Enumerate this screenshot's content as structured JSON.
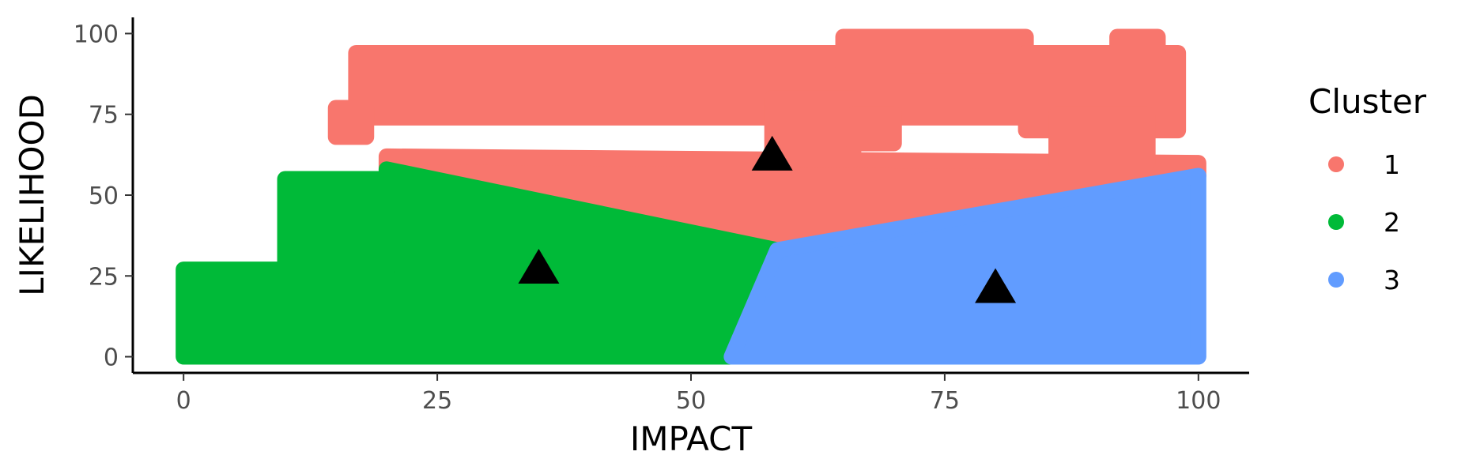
{
  "chart_data": {
    "type": "scatter",
    "xlabel": "IMPACT",
    "ylabel": "LIKELIHOOD",
    "xlim": [
      -5,
      105
    ],
    "ylim": [
      -5,
      105
    ],
    "xticks": [
      0,
      25,
      50,
      75,
      100
    ],
    "yticks": [
      0,
      25,
      50,
      75,
      100
    ],
    "grid": false,
    "legend": {
      "title": "Cluster",
      "placement": "right"
    },
    "series": [
      {
        "name": "1",
        "color": "#F8766D",
        "regions": [
          {
            "x": [
              17,
              83
            ],
            "y": [
              74,
              94
            ]
          },
          {
            "x": [
              15,
              18
            ],
            "y": [
              68,
              77
            ]
          },
          {
            "x": [
              65,
              83
            ],
            "y": [
              90,
              99
            ]
          },
          {
            "x": [
              83,
              98
            ],
            "y": [
              70,
              94
            ]
          },
          {
            "x": [
              92,
              96
            ],
            "y": [
              95,
              99
            ]
          },
          {
            "x": [
              58,
              66
            ],
            "y": [
              61,
              80
            ]
          },
          {
            "x": [
              86,
              95
            ],
            "y": [
              60,
              75
            ]
          },
          {
            "x": [
              66,
              70
            ],
            "y": [
              66,
              75
            ]
          }
        ],
        "boundary_polygon": [
          [
            20,
            62
          ],
          [
            100,
            60
          ],
          [
            100,
            56
          ],
          [
            58.5,
            33
          ],
          [
            20,
            58
          ]
        ]
      },
      {
        "name": "2",
        "color": "#00BA38",
        "regions": [
          {
            "x": [
              0,
              20
            ],
            "y": [
              0,
              27
            ]
          },
          {
            "x": [
              10,
              20
            ],
            "y": [
              27,
              55
            ]
          }
        ],
        "boundary_polygon": [
          [
            20,
            58
          ],
          [
            58.5,
            33
          ],
          [
            54,
            0
          ],
          [
            20,
            0
          ]
        ]
      },
      {
        "name": "3",
        "color": "#619CFF",
        "boundary_polygon": [
          [
            58.5,
            33
          ],
          [
            100,
            56
          ],
          [
            100,
            0
          ],
          [
            68,
            0
          ],
          [
            54,
            0
          ]
        ]
      }
    ],
    "centroids": [
      {
        "cluster": "1",
        "x": 58,
        "y": 63
      },
      {
        "cluster": "2",
        "x": 35,
        "y": 28
      },
      {
        "cluster": "3",
        "x": 80,
        "y": 22
      }
    ]
  }
}
